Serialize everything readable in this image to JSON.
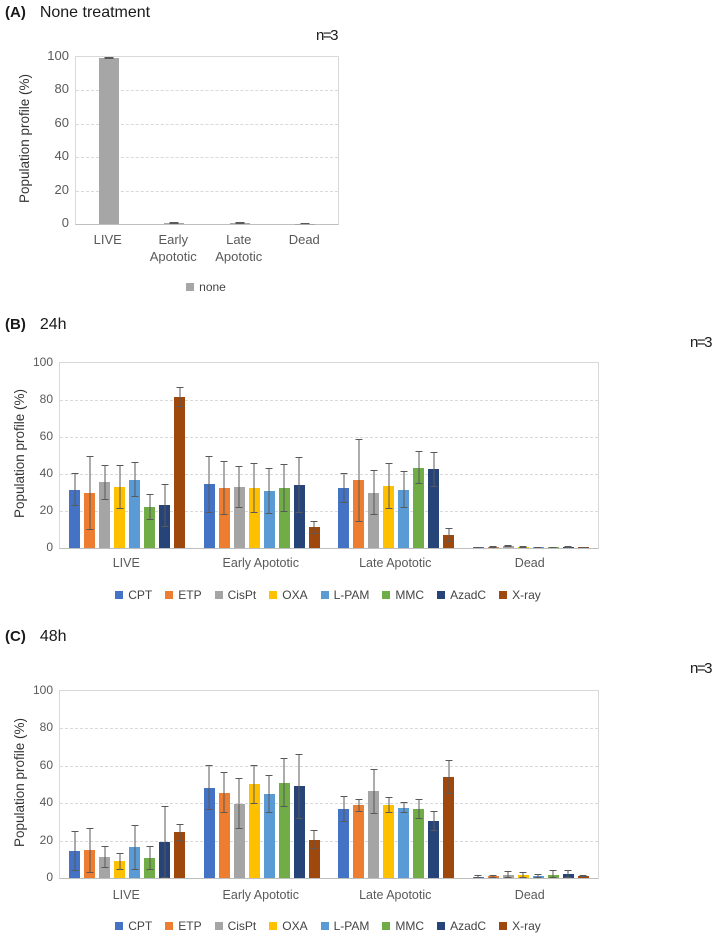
{
  "chart_data": [
    {
      "type": "bar",
      "panel": "(A)",
      "title": "None treatment",
      "annotation": "n=3",
      "ylabel": "Population profile (%)",
      "ylim": [
        0,
        100
      ],
      "yticks": [
        0,
        20,
        40,
        60,
        80,
        100
      ],
      "grid": "horizontal-dashed",
      "legend_position": "bottom",
      "categories": [
        "LIVE",
        "Early Apototic",
        "Late Apototic",
        "Dead"
      ],
      "series": [
        {
          "name": "none",
          "color": "#a6a6a6",
          "values": [
            99.4,
            0.6,
            0.6,
            0.3
          ],
          "errors": [
            0.6,
            0.4,
            0.4,
            0.2
          ]
        }
      ]
    },
    {
      "type": "bar",
      "panel": "(B)",
      "title": "24h",
      "annotation": "n=3",
      "ylabel": "Population profile (%)",
      "ylim": [
        0,
        100
      ],
      "yticks": [
        0,
        20,
        40,
        60,
        80,
        100
      ],
      "grid": "horizontal-dashed",
      "legend_position": "bottom",
      "categories": [
        "LIVE",
        "Early Apototic",
        "Late Apototic",
        "Dead"
      ],
      "series": [
        {
          "name": "CPT",
          "color": "#4472c4",
          "values": [
            31.5,
            34.5,
            32.5,
            0.5
          ],
          "errors": [
            9,
            15.5,
            8,
            0.3
          ]
        },
        {
          "name": "ETP",
          "color": "#ed7d31",
          "values": [
            30,
            32.5,
            36.5,
            0.5
          ],
          "errors": [
            20,
            14.5,
            22.5,
            0.4
          ]
        },
        {
          "name": "CisPt",
          "color": "#a5a5a5",
          "values": [
            35.5,
            33,
            30,
            0.9
          ],
          "errors": [
            9.5,
            11.5,
            12,
            0.6
          ]
        },
        {
          "name": "OXA",
          "color": "#ffc000",
          "values": [
            33,
            32.5,
            33.5,
            0.6
          ],
          "errors": [
            12,
            13.5,
            12.5,
            0.4
          ]
        },
        {
          "name": "L-PAM",
          "color": "#5b9bd5",
          "values": [
            37,
            31,
            31.5,
            0.4
          ],
          "errors": [
            9.5,
            12.5,
            10,
            0.3
          ]
        },
        {
          "name": "MMC",
          "color": "#70ad47",
          "values": [
            22,
            32.5,
            43.5,
            0.3
          ],
          "errors": [
            7,
            13,
            9,
            0.2
          ]
        },
        {
          "name": "AzadC",
          "color": "#264478",
          "values": [
            23,
            34,
            42.5,
            0.6
          ],
          "errors": [
            11.5,
            15,
            9.5,
            0.4
          ]
        },
        {
          "name": "X-ray",
          "color": "#9e480e",
          "values": [
            81.5,
            11.3,
            7.2,
            0.5
          ],
          "errors": [
            5.5,
            3.5,
            3.8,
            0.3
          ]
        }
      ]
    },
    {
      "type": "bar",
      "panel": "(C)",
      "title": "48h",
      "annotation": "n=3",
      "ylabel": "Population profile (%)",
      "ylim": [
        0,
        100
      ],
      "yticks": [
        0,
        20,
        40,
        60,
        80,
        100
      ],
      "grid": "horizontal-dashed",
      "legend_position": "bottom",
      "categories": [
        "LIVE",
        "Early Apototic",
        "Late Apototic",
        "Dead"
      ],
      "series": [
        {
          "name": "CPT",
          "color": "#4472c4",
          "values": [
            14.3,
            48.4,
            37,
            0.7
          ],
          "errors": [
            10.7,
            12,
            6.8,
            0.7
          ]
        },
        {
          "name": "ETP",
          "color": "#ed7d31",
          "values": [
            14.8,
            45.7,
            39,
            1.0
          ],
          "errors": [
            12,
            11,
            3.5,
            0.8
          ]
        },
        {
          "name": "CisPt",
          "color": "#a5a5a5",
          "values": [
            11.3,
            39.8,
            46.5,
            1.4
          ],
          "errors": [
            5.7,
            13.5,
            12,
            2.2
          ]
        },
        {
          "name": "OXA",
          "color": "#ffc000",
          "values": [
            9,
            50.2,
            39,
            1.4
          ],
          "errors": [
            4.5,
            10.5,
            4.3,
            1.8
          ]
        },
        {
          "name": "L-PAM",
          "color": "#5b9bd5",
          "values": [
            16.5,
            45,
            37.7,
            1.3
          ],
          "errors": [
            12,
            10,
            2.7,
            1.1
          ]
        },
        {
          "name": "MMC",
          "color": "#70ad47",
          "values": [
            10.8,
            51,
            37,
            1.5
          ],
          "errors": [
            6.5,
            13,
            5.2,
            2.6
          ]
        },
        {
          "name": "AzadC",
          "color": "#264478",
          "values": [
            19,
            49,
            30.5,
            2.0
          ],
          "errors": [
            19.5,
            17.5,
            5.5,
            2.2
          ]
        },
        {
          "name": "X-ray",
          "color": "#9e480e",
          "values": [
            24.5,
            20.5,
            54,
            0.9
          ],
          "errors": [
            4.5,
            5,
            9,
            0.6
          ]
        }
      ]
    }
  ]
}
